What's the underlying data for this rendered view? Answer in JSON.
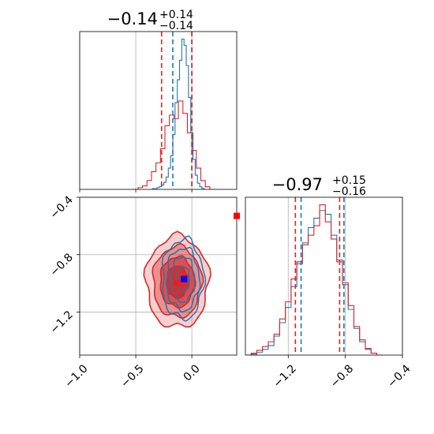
{
  "chart_data": [
    {
      "type": "histogram",
      "panel": "x-marginal",
      "title": {
        "value": "−0.14",
        "plus": "+0.14",
        "minus": "−0.14"
      },
      "xlim": [
        -1.0,
        0.4
      ],
      "grid": true,
      "series": [
        {
          "name": "",
          "color": "#1f77b4",
          "bin_centers": [
            -0.36,
            -0.34,
            -0.32,
            -0.3,
            -0.28,
            -0.26,
            -0.24,
            -0.22,
            -0.2,
            -0.18,
            -0.16,
            -0.14,
            -0.12,
            -0.1,
            -0.08,
            -0.06,
            -0.04,
            -0.02,
            0.0,
            0.02,
            0.04,
            0.06,
            0.08,
            0.1,
            0.12
          ],
          "values": [
            0,
            1,
            1,
            2,
            3,
            5,
            8,
            14,
            24,
            38,
            62,
            98,
            124,
            146,
            170,
            163,
            140,
            104,
            64,
            34,
            16,
            7,
            3,
            1,
            0
          ],
          "quantiles": [
            -0.17,
            0.0
          ]
        },
        {
          "name": "",
          "color": "#d62728",
          "bin_centers": [
            -0.5,
            -0.46,
            -0.42,
            -0.38,
            -0.34,
            -0.3,
            -0.26,
            -0.22,
            -0.18,
            -0.14,
            -0.1,
            -0.06,
            -0.02,
            0.02,
            0.06,
            0.1,
            0.14,
            0.18
          ],
          "values": [
            0,
            2,
            4,
            10,
            20,
            30,
            46,
            72,
            84,
            80,
            100,
            86,
            64,
            44,
            24,
            10,
            3,
            0
          ],
          "quantiles": [
            -0.27,
            0.0
          ]
        }
      ]
    },
    {
      "type": "histogram",
      "panel": "y-marginal",
      "title": {
        "value": "−0.97",
        "plus": "+0.15",
        "minus": "−0.16"
      },
      "xlim": [
        -1.5,
        -0.4
      ],
      "grid": true,
      "series": [
        {
          "name": "",
          "color": "#1f77b4",
          "bin_centers": [
            -1.48,
            -1.44,
            -1.4,
            -1.36,
            -1.32,
            -1.28,
            -1.24,
            -1.2,
            -1.16,
            -1.12,
            -1.08,
            -1.04,
            -1.0,
            -0.96,
            -0.92,
            -0.88,
            -0.84,
            -0.8,
            -0.76,
            -0.72,
            -0.68,
            -0.64,
            -0.6,
            -0.56
          ],
          "values": [
            0,
            1,
            3,
            6,
            10,
            20,
            34,
            50,
            72,
            96,
            118,
            134,
            144,
            152,
            148,
            126,
            100,
            74,
            48,
            28,
            14,
            6,
            2,
            0
          ],
          "quantiles": [
            -1.11,
            -0.81
          ]
        },
        {
          "name": "",
          "color": "#d62728",
          "bin_centers": [
            -1.48,
            -1.44,
            -1.4,
            -1.36,
            -1.32,
            -1.28,
            -1.24,
            -1.2,
            -1.16,
            -1.12,
            -1.08,
            -1.04,
            -1.0,
            -0.96,
            -0.92,
            -0.88,
            -0.84,
            -0.8,
            -0.76,
            -0.72,
            -0.68,
            -0.64,
            -0.6,
            -0.56
          ],
          "values": [
            0,
            2,
            5,
            9,
            14,
            22,
            38,
            56,
            80,
            98,
            116,
            126,
            136,
            158,
            140,
            122,
            98,
            76,
            52,
            30,
            16,
            7,
            2,
            0
          ],
          "quantiles": [
            -1.15,
            -0.84
          ]
        }
      ]
    },
    {
      "type": "contour",
      "panel": "joint",
      "xlim": [
        -1.0,
        0.4
      ],
      "ylim": [
        -1.5,
        -0.4
      ],
      "grid": true,
      "series": [
        {
          "name": "",
          "color": "#d62728",
          "filled": true,
          "center": [
            -0.13,
            -0.99
          ],
          "levels_sigma": [
            0.14,
            0.16
          ]
        },
        {
          "name": "",
          "color": "#1f77b4",
          "filled": false,
          "center": [
            -0.08,
            -0.97
          ],
          "levels_sigma": [
            0.1,
            0.15
          ]
        }
      ],
      "markers": [
        {
          "name": "",
          "color": "#d62728",
          "x": -0.13,
          "y": -1.0
        },
        {
          "name": "",
          "color": "#0000ff",
          "x": -0.07,
          "y": -0.97
        },
        {
          "name": "",
          "color": "#ff0000",
          "x": 0.4,
          "y": -0.53
        }
      ]
    }
  ],
  "axes": {
    "x_ticks": [
      "−1.0",
      "−0.5",
      "0.0"
    ],
    "x_tick_values": [
      -1.0,
      -0.5,
      0.0
    ],
    "y_ticks": [
      "−0.4",
      "−0.8",
      "−1.2"
    ],
    "y_tick_values": [
      -0.4,
      -0.8,
      -1.2
    ],
    "y_marginal_ticks": [
      "−1.2",
      "−0.8",
      "−0.4"
    ],
    "y_marginal_tick_values": [
      -1.2,
      -0.8,
      -0.4
    ]
  }
}
